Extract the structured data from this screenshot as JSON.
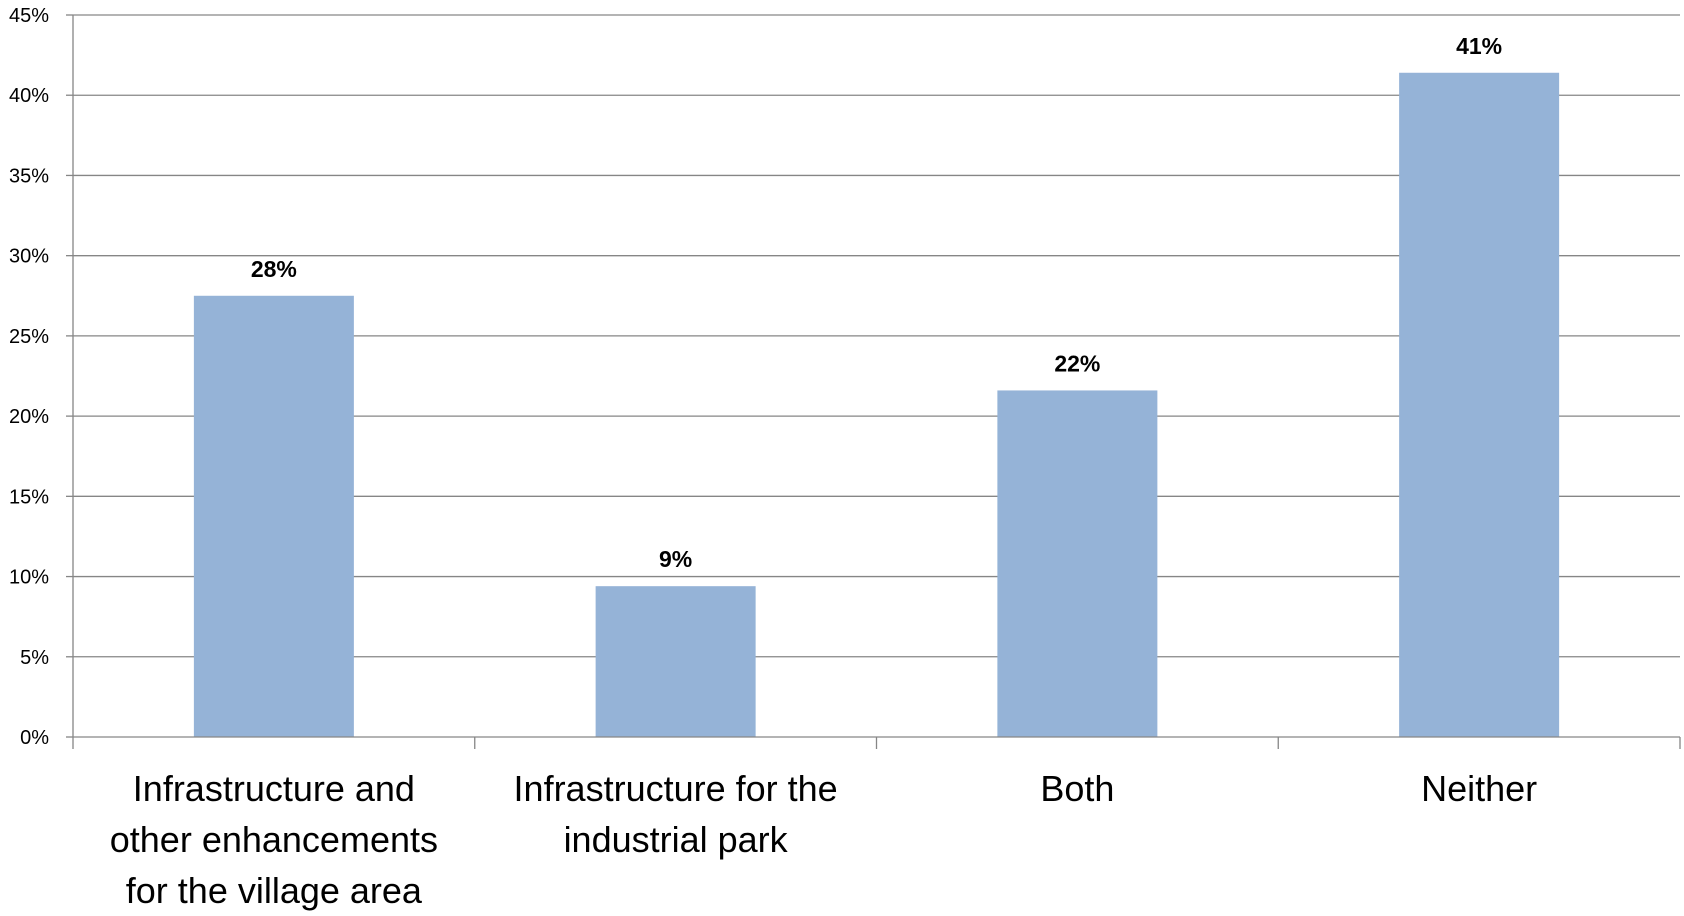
{
  "chart_data": {
    "type": "bar",
    "title": "",
    "xlabel": "",
    "ylabel": "",
    "categories": [
      [
        "Infrastructure and",
        "other enhancements",
        "for the village area"
      ],
      [
        "Infrastructure for the",
        "industrial park"
      ],
      [
        "Both"
      ],
      [
        "Neither"
      ]
    ],
    "values": [
      27.5,
      9.4,
      21.6,
      41.4
    ],
    "data_labels": [
      "28%",
      "9%",
      "22%",
      "41%"
    ],
    "ylim": [
      0,
      45
    ],
    "y_ticks": [
      0,
      5,
      10,
      15,
      20,
      25,
      30,
      35,
      40,
      45
    ],
    "y_tick_labels": [
      "0%",
      "5%",
      "10%",
      "15%",
      "20%",
      "25%",
      "30%",
      "35%",
      "40%",
      "45%"
    ],
    "grid": true,
    "legend": "none",
    "colors": {
      "bar": "#95B3D7",
      "gridline": "#868686",
      "axis": "#868686"
    }
  }
}
